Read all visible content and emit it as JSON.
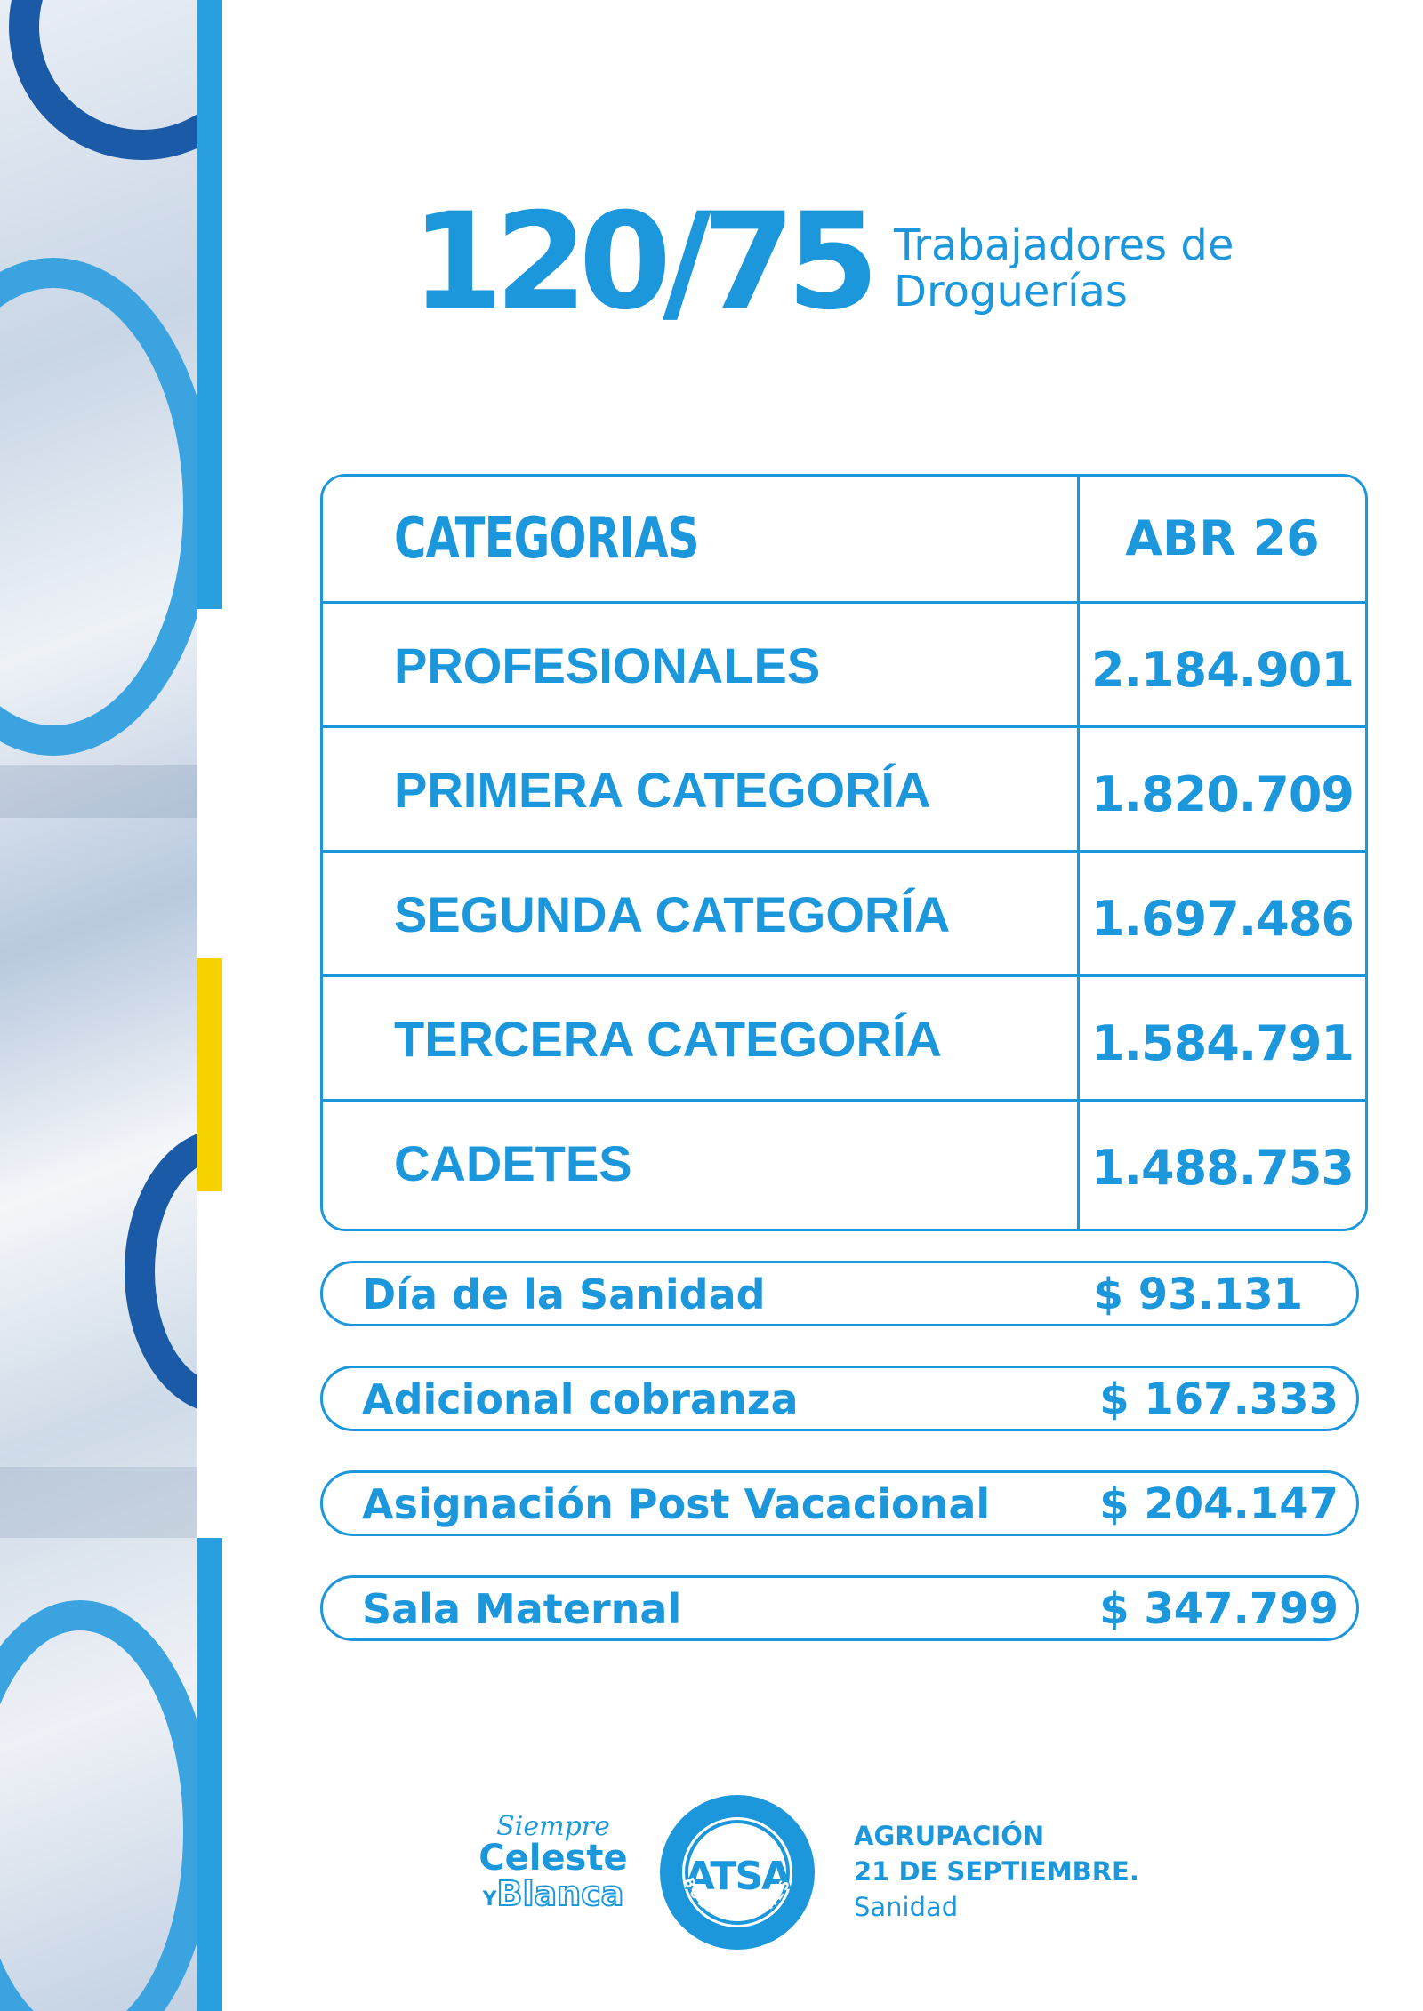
{
  "title": {
    "number": "120/75",
    "subtitle_line1": "Trabajadores de",
    "subtitle_line2": "Droguerías"
  },
  "table": {
    "header": {
      "label": "CATEGORIAS",
      "value": "ABR 26"
    },
    "rows": [
      {
        "label": "PROFESIONALES",
        "value": "2.184.901"
      },
      {
        "label": "PRIMERA CATEGORÍA",
        "value": "1.820.709"
      },
      {
        "label": "SEGUNDA CATEGORÍA",
        "value": "1.697.486"
      },
      {
        "label": "TERCERA CATEGORÍA",
        "value": "1.584.791"
      },
      {
        "label": "CADETES",
        "value": "1.488.753"
      }
    ]
  },
  "extras": [
    {
      "label": "Día de la Sanidad",
      "value": "$ 93.131"
    },
    {
      "label": "Adicional cobranza",
      "value": "$ 167.333"
    },
    {
      "label": "Asignación Post Vacacional",
      "value": "$ 204.147"
    },
    {
      "label": "Sala Maternal",
      "value": "$ 347.799"
    }
  ],
  "footer": {
    "slogan_line1": "Siempre",
    "slogan_line2": "Celeste",
    "slogan_y": "Y",
    "slogan_line3": "Blanca",
    "logo_text": "ATSA",
    "logo_ring_text": "BUENOS AIRES",
    "org_line1": "AGRUPACIÓN",
    "org_line2": "21 DE SEPTIEMBRE.",
    "org_line3": "Sanidad"
  },
  "colors": {
    "brand_blue": "#1d97db",
    "accent_blue": "#2a9fe0",
    "accent_yellow": "#f6d300",
    "dark_blue": "#1a5aa6"
  }
}
